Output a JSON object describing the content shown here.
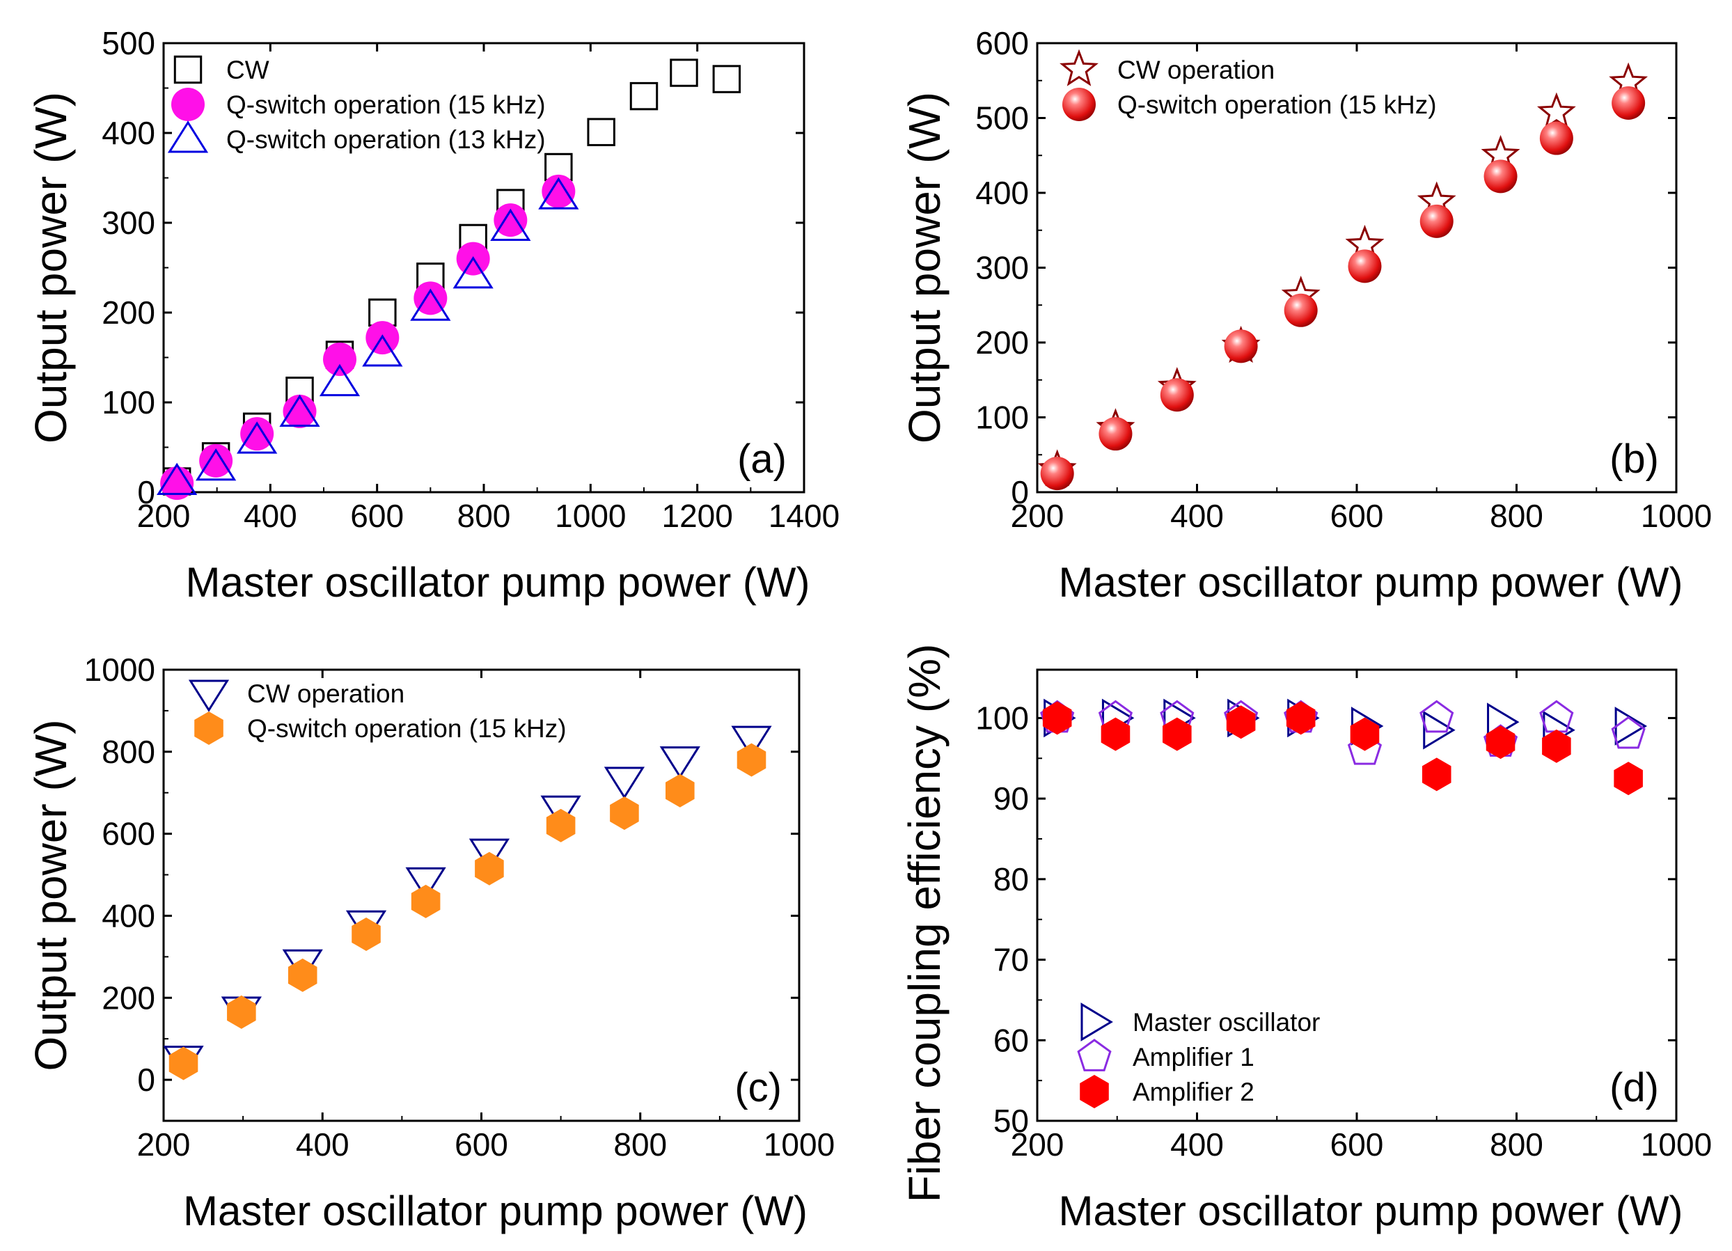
{
  "chart_data": [
    {
      "id": "a",
      "type": "scatter",
      "panel_label": "(a)",
      "xlabel": "Master oscillator pump power (W)",
      "ylabel": "Output power (W)",
      "xlim": [
        200,
        1400
      ],
      "ylim": [
        0,
        500
      ],
      "xticks": [
        200,
        400,
        600,
        800,
        1000,
        1200,
        1400
      ],
      "yticks": [
        0,
        100,
        200,
        300,
        400,
        500
      ],
      "grid": false,
      "legend_position": "top-left",
      "series": [
        {
          "name": "CW",
          "marker": "square-open",
          "color": "#000000",
          "x": [
            225,
            298,
            375,
            455,
            530,
            610,
            700,
            780,
            850,
            940,
            1020,
            1100,
            1175,
            1255
          ],
          "y": [
            12,
            40,
            73,
            113,
            153,
            200,
            240,
            283,
            322,
            362,
            401,
            441,
            467,
            460
          ]
        },
        {
          "name": "Q-switch operation (15 kHz)",
          "marker": "circle-filled",
          "color": "#ff10e8",
          "x": [
            225,
            298,
            375,
            455,
            530,
            610,
            700,
            780,
            850,
            940
          ],
          "y": [
            10,
            35,
            65,
            90,
            148,
            172,
            216,
            260,
            303,
            335
          ]
        },
        {
          "name": "Q-switch operation (13 kHz)",
          "marker": "triangle-up-open",
          "color": "#0000e0",
          "x": [
            225,
            298,
            375,
            455,
            530,
            610,
            700,
            780,
            850,
            940
          ],
          "y": [
            12,
            28,
            58,
            88,
            122,
            155,
            206,
            242,
            295,
            330
          ]
        }
      ]
    },
    {
      "id": "b",
      "type": "scatter",
      "panel_label": "(b)",
      "xlabel": "Master oscillator pump power (W)",
      "ylabel": "Output power (W)",
      "xlim": [
        200,
        1000
      ],
      "ylim": [
        0,
        600
      ],
      "xticks": [
        200,
        400,
        600,
        800,
        1000
      ],
      "yticks": [
        0,
        100,
        200,
        300,
        400,
        500,
        600
      ],
      "grid": false,
      "legend_position": "top-left",
      "series": [
        {
          "name": "CW operation",
          "marker": "star-open",
          "color": "#8b0000",
          "x": [
            225,
            298,
            375,
            455,
            530,
            610,
            700,
            780,
            850,
            940
          ],
          "y": [
            30,
            85,
            140,
            195,
            262,
            330,
            388,
            450,
            507,
            547
          ]
        },
        {
          "name": "Q-switch operation (15 kHz)",
          "marker": "sphere",
          "color": "#e81010",
          "x": [
            225,
            298,
            375,
            455,
            530,
            610,
            700,
            780,
            850,
            940
          ],
          "y": [
            25,
            78,
            130,
            195,
            243,
            302,
            362,
            422,
            473,
            520
          ]
        }
      ]
    },
    {
      "id": "c",
      "type": "scatter",
      "panel_label": "(c)",
      "xlabel": "Master oscillator pump power (W)",
      "ylabel": "Output power (W)",
      "xlim": [
        200,
        1000
      ],
      "ylim": [
        -100,
        1000
      ],
      "xticks": [
        200,
        400,
        600,
        800,
        1000
      ],
      "yticks": [
        0,
        200,
        400,
        600,
        800,
        1000
      ],
      "grid": false,
      "legend_position": "top-left",
      "series": [
        {
          "name": "CW operation",
          "marker": "triangle-down-open",
          "color": "#00008b",
          "x": [
            225,
            298,
            375,
            455,
            530,
            610,
            700,
            780,
            850,
            940
          ],
          "y": [
            50,
            170,
            285,
            380,
            485,
            555,
            660,
            730,
            780,
            830
          ]
        },
        {
          "name": " Q-switch operation (15 kHz)",
          "marker": "hexagon-filled",
          "color": "#ff8c1a",
          "x": [
            225,
            298,
            375,
            455,
            530,
            610,
            700,
            780,
            850,
            940
          ],
          "y": [
            40,
            165,
            255,
            355,
            435,
            515,
            620,
            650,
            705,
            780
          ]
        }
      ]
    },
    {
      "id": "d",
      "type": "scatter",
      "panel_label": "(d)",
      "xlabel": "Master oscillator pump power (W)",
      "ylabel": "Fiber coupling efficiency (%)",
      "xlim": [
        200,
        1000
      ],
      "ylim": [
        50,
        106
      ],
      "xticks": [
        200,
        400,
        600,
        800,
        1000
      ],
      "yticks": [
        50,
        60,
        70,
        80,
        90,
        100
      ],
      "grid": false,
      "legend_position": "bottom-left",
      "series": [
        {
          "name": "Master oscillator",
          "marker": "triangle-right-open",
          "color": "#00008b",
          "x": [
            225,
            298,
            375,
            455,
            530,
            610,
            700,
            780,
            850,
            940
          ],
          "y": [
            100,
            100,
            100,
            100,
            100,
            99,
            98.5,
            99.5,
            98.5,
            99
          ]
        },
        {
          "name": "Amplifier 1",
          "marker": "pentagon-open",
          "color": "#8a2be2",
          "x": [
            225,
            298,
            375,
            455,
            530,
            610,
            700,
            780,
            850,
            940
          ],
          "y": [
            100,
            100,
            100,
            100,
            100,
            96,
            100,
            97,
            100,
            98
          ]
        },
        {
          "name": "Amplifier 2",
          "marker": "hexagon-filled",
          "color": "#ff0000",
          "x": [
            225,
            298,
            375,
            455,
            530,
            610,
            700,
            780,
            850,
            940
          ],
          "y": [
            100,
            98,
            98,
            99.5,
            100,
            98,
            93,
            97,
            96.5,
            92.5
          ]
        }
      ]
    }
  ]
}
